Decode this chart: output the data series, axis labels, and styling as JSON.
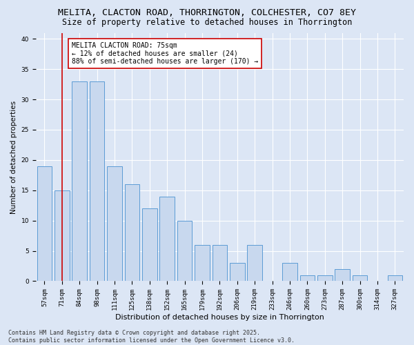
{
  "title": "MELITA, CLACTON ROAD, THORRINGTON, COLCHESTER, CO7 8EY",
  "subtitle": "Size of property relative to detached houses in Thorrington",
  "xlabel": "Distribution of detached houses by size in Thorrington",
  "ylabel": "Number of detached properties",
  "categories": [
    "57sqm",
    "71sqm",
    "84sqm",
    "98sqm",
    "111sqm",
    "125sqm",
    "138sqm",
    "152sqm",
    "165sqm",
    "179sqm",
    "192sqm",
    "206sqm",
    "219sqm",
    "233sqm",
    "246sqm",
    "260sqm",
    "273sqm",
    "287sqm",
    "300sqm",
    "314sqm",
    "327sqm"
  ],
  "values": [
    19,
    15,
    33,
    33,
    19,
    16,
    12,
    14,
    10,
    6,
    6,
    3,
    6,
    0,
    3,
    1,
    1,
    2,
    1,
    0,
    1
  ],
  "bar_color": "#c8d8ee",
  "bar_edge_color": "#5b9bd5",
  "vline_color": "#cc0000",
  "vline_pos": 1,
  "annotation_text": "MELITA CLACTON ROAD: 75sqm\n← 12% of detached houses are smaller (24)\n88% of semi-detached houses are larger (170) →",
  "annotation_box_color": "#ffffff",
  "annotation_box_edge_color": "#cc0000",
  "ylim": [
    0,
    41
  ],
  "yticks": [
    0,
    5,
    10,
    15,
    20,
    25,
    30,
    35,
    40
  ],
  "background_color": "#dce6f5",
  "grid_color": "#ffffff",
  "footer": "Contains HM Land Registry data © Crown copyright and database right 2025.\nContains public sector information licensed under the Open Government Licence v3.0.",
  "title_fontsize": 9.5,
  "subtitle_fontsize": 8.5,
  "xlabel_fontsize": 8,
  "ylabel_fontsize": 7.5,
  "tick_fontsize": 6.5,
  "annotation_fontsize": 7,
  "footer_fontsize": 6
}
